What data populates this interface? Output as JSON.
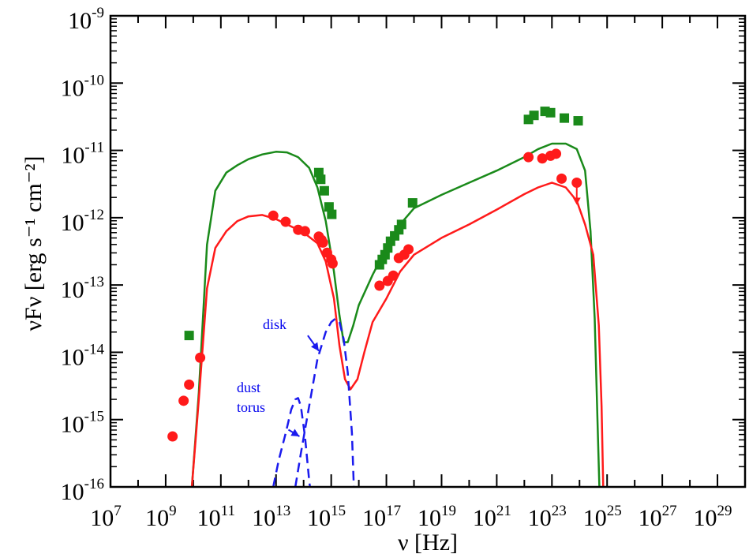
{
  "chart_data": {
    "type": "scatter",
    "title": "",
    "xlabel": "ν [Hz]",
    "ylabel": "νFν [erg s⁻¹ cm⁻²]",
    "x_scale": "log",
    "y_scale": "log",
    "xlim_log10": [
      7,
      30
    ],
    "ylim_log10": [
      -16,
      -9
    ],
    "x_tick_labels": [
      {
        "base": "10",
        "exp": "7",
        "log": 7
      },
      {
        "base": "10",
        "exp": "9",
        "log": 9
      },
      {
        "base": "10",
        "exp": "11",
        "log": 11
      },
      {
        "base": "10",
        "exp": "13",
        "log": 13
      },
      {
        "base": "10",
        "exp": "15",
        "log": 15
      },
      {
        "base": "10",
        "exp": "17",
        "log": 17
      },
      {
        "base": "10",
        "exp": "19",
        "log": 19
      },
      {
        "base": "10",
        "exp": "21",
        "log": 21
      },
      {
        "base": "10",
        "exp": "23",
        "log": 23
      },
      {
        "base": "10",
        "exp": "25",
        "log": 25
      },
      {
        "base": "10",
        "exp": "27",
        "log": 27
      },
      {
        "base": "10",
        "exp": "29",
        "log": 29
      }
    ],
    "y_tick_labels": [
      {
        "base": "10",
        "exp": "-16",
        "log": -16
      },
      {
        "base": "10",
        "exp": "-15",
        "log": -15
      },
      {
        "base": "10",
        "exp": "-14",
        "log": -14
      },
      {
        "base": "10",
        "exp": "-13",
        "log": -13
      },
      {
        "base": "10",
        "exp": "-12",
        "log": -12
      },
      {
        "base": "10",
        "exp": "-11",
        "log": -11
      },
      {
        "base": "10",
        "exp": "-10",
        "log": -10
      },
      {
        "base": "10",
        "exp": "-9",
        "log": -9
      }
    ],
    "annotations": [
      {
        "text": "disk",
        "arrow_from_log": [
          14.15,
          -13.75
        ],
        "arrow_to_log": [
          14.55,
          -13.98
        ]
      },
      {
        "text": "dust",
        "arrow_from_log": null,
        "arrow_to_log": null
      },
      {
        "text": "torus",
        "arrow_from_log": [
          13.45,
          -15.15
        ],
        "arrow_to_log": [
          13.85,
          -15.25
        ]
      }
    ],
    "model_curves": [
      {
        "name": "green model",
        "color": "#1a8a1a",
        "dash": "solid",
        "points_log": [
          [
            9.95,
            -16
          ],
          [
            10.2,
            -14.6
          ],
          [
            10.5,
            -12.4
          ],
          [
            10.8,
            -11.6
          ],
          [
            11.2,
            -11.33
          ],
          [
            11.6,
            -11.22
          ],
          [
            12,
            -11.13
          ],
          [
            12.5,
            -11.06
          ],
          [
            13,
            -11.02
          ],
          [
            13.4,
            -11.03
          ],
          [
            13.8,
            -11.1
          ],
          [
            14.2,
            -11.26
          ],
          [
            14.5,
            -11.55
          ],
          [
            14.8,
            -12.05
          ],
          [
            15.1,
            -12.8
          ],
          [
            15.3,
            -13.45
          ],
          [
            15.45,
            -13.85
          ],
          [
            15.6,
            -13.85
          ],
          [
            15.8,
            -13.6
          ],
          [
            16,
            -13.3
          ],
          [
            16.5,
            -12.85
          ],
          [
            17,
            -12.45
          ],
          [
            17.5,
            -12.1
          ],
          [
            18,
            -11.86
          ],
          [
            19,
            -11.66
          ],
          [
            20,
            -11.48
          ],
          [
            21,
            -11.3
          ],
          [
            22,
            -11.1
          ],
          [
            22.5,
            -10.98
          ],
          [
            23,
            -10.9
          ],
          [
            23.5,
            -10.9
          ],
          [
            23.9,
            -10.98
          ],
          [
            24.2,
            -11.3
          ],
          [
            24.4,
            -12.2
          ],
          [
            24.55,
            -13.5
          ],
          [
            24.65,
            -15
          ],
          [
            24.72,
            -16
          ]
        ]
      },
      {
        "name": "red model",
        "color": "#ff1a1a",
        "dash": "solid",
        "points_log": [
          [
            9.95,
            -16
          ],
          [
            10.2,
            -14.7
          ],
          [
            10.5,
            -13.05
          ],
          [
            10.8,
            -12.45
          ],
          [
            11.2,
            -12.2
          ],
          [
            11.6,
            -12.05
          ],
          [
            12,
            -11.98
          ],
          [
            12.5,
            -11.96
          ],
          [
            13,
            -12.02
          ],
          [
            13.5,
            -12.12
          ],
          [
            14,
            -12.22
          ],
          [
            14.5,
            -12.38
          ],
          [
            14.8,
            -12.65
          ],
          [
            15.1,
            -13.2
          ],
          [
            15.3,
            -13.9
          ],
          [
            15.5,
            -14.4
          ],
          [
            15.7,
            -14.55
          ],
          [
            15.95,
            -14.4
          ],
          [
            16.2,
            -14
          ],
          [
            16.5,
            -13.55
          ],
          [
            17,
            -13.2
          ],
          [
            17.5,
            -12.8
          ],
          [
            18,
            -12.55
          ],
          [
            19,
            -12.3
          ],
          [
            20,
            -12.1
          ],
          [
            21,
            -11.88
          ],
          [
            22,
            -11.65
          ],
          [
            22.5,
            -11.55
          ],
          [
            23,
            -11.48
          ],
          [
            23.5,
            -11.55
          ],
          [
            23.9,
            -11.75
          ],
          [
            24.2,
            -12.1
          ],
          [
            24.5,
            -12.55
          ],
          [
            24.7,
            -13.6
          ],
          [
            24.8,
            -14.8
          ],
          [
            24.86,
            -16
          ]
        ]
      },
      {
        "name": "disk",
        "color": "#1a1aee",
        "dash": "dashed",
        "points_log": [
          [
            13.7,
            -16
          ],
          [
            13.9,
            -15.5
          ],
          [
            14.2,
            -14.8
          ],
          [
            14.5,
            -14.1
          ],
          [
            14.8,
            -13.7
          ],
          [
            15,
            -13.55
          ],
          [
            15.15,
            -13.5
          ],
          [
            15.3,
            -13.55
          ],
          [
            15.45,
            -13.8
          ],
          [
            15.6,
            -14.3
          ],
          [
            15.75,
            -15.2
          ],
          [
            15.82,
            -16
          ]
        ]
      },
      {
        "name": "dust torus",
        "color": "#1a1aee",
        "dash": "dashed",
        "points_log": [
          [
            12.9,
            -16
          ],
          [
            13.1,
            -15.6
          ],
          [
            13.35,
            -15.2
          ],
          [
            13.55,
            -14.85
          ],
          [
            13.7,
            -14.7
          ],
          [
            13.8,
            -14.68
          ],
          [
            13.9,
            -14.8
          ],
          [
            14.05,
            -15.25
          ],
          [
            14.2,
            -15.9
          ],
          [
            14.23,
            -16
          ]
        ]
      }
    ],
    "series": [
      {
        "name": "red data",
        "color": "#ff1a1a",
        "marker": "circle",
        "points_log": [
          [
            9.25,
            -15.25
          ],
          [
            9.65,
            -14.72
          ],
          [
            9.85,
            -14.48
          ],
          [
            10.25,
            -14.08
          ],
          [
            12.9,
            -11.97
          ],
          [
            13.35,
            -12.06
          ],
          [
            13.8,
            -12.18
          ],
          [
            14.05,
            -12.2
          ],
          [
            14.55,
            -12.28
          ],
          [
            14.65,
            -12.33
          ],
          [
            14.7,
            -12.37
          ],
          [
            14.85,
            -12.52
          ],
          [
            15,
            -12.62
          ],
          [
            15.05,
            -12.68
          ],
          [
            16.75,
            -13.01
          ],
          [
            17.05,
            -12.94
          ],
          [
            17.25,
            -12.86
          ],
          [
            17.45,
            -12.6
          ],
          [
            17.65,
            -12.55
          ],
          [
            17.8,
            -12.47
          ],
          [
            22.15,
            -11.1
          ],
          [
            22.65,
            -11.12
          ],
          [
            22.95,
            -11.08
          ],
          [
            23.15,
            -11.05
          ],
          [
            23.35,
            -11.42
          ],
          [
            23.9,
            -11.48
          ]
        ]
      },
      {
        "name": "green data",
        "color": "#1a8a1a",
        "marker": "square",
        "points_log": [
          [
            9.85,
            -13.75
          ],
          [
            14.55,
            -11.33
          ],
          [
            14.62,
            -11.43
          ],
          [
            14.75,
            -11.6
          ],
          [
            14.92,
            -11.84
          ],
          [
            15.02,
            -11.95
          ],
          [
            16.75,
            -12.7
          ],
          [
            16.85,
            -12.62
          ],
          [
            16.95,
            -12.55
          ],
          [
            17.05,
            -12.45
          ],
          [
            17.15,
            -12.35
          ],
          [
            17.3,
            -12.27
          ],
          [
            17.45,
            -12.18
          ],
          [
            17.55,
            -12.1
          ],
          [
            17.95,
            -11.78
          ],
          [
            22.15,
            -10.54
          ],
          [
            22.35,
            -10.48
          ],
          [
            22.75,
            -10.42
          ],
          [
            22.95,
            -10.44
          ],
          [
            23.45,
            -10.52
          ],
          [
            23.95,
            -10.56
          ]
        ]
      },
      {
        "name": "upper limit",
        "color": "#ff1a1a",
        "marker": "arrow-down",
        "points_log": [
          [
            23.9,
            -11.48
          ]
        ]
      }
    ]
  }
}
